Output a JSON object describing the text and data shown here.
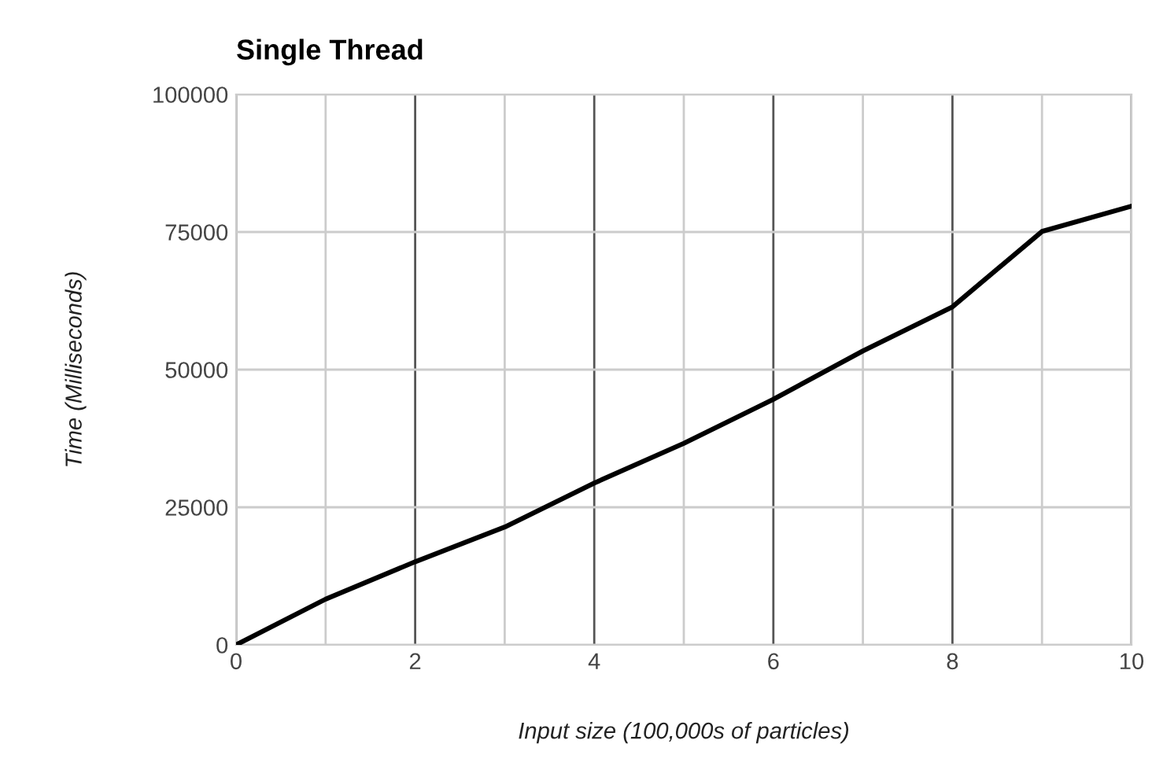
{
  "chart_data": {
    "type": "line",
    "title": "Single Thread",
    "xlabel": "Input size (100,000s of particles)",
    "ylabel": "Time (Milliseconds)",
    "x": [
      0,
      1,
      2,
      3,
      4,
      5,
      6,
      7,
      8,
      9,
      10
    ],
    "series": [
      {
        "color": "#000000",
        "values": [
          0,
          8300,
          15100,
          21400,
          29400,
          36600,
          44600,
          53400,
          61400,
          75100,
          79700
        ]
      }
    ],
    "xlim": [
      0,
      10
    ],
    "ylim": [
      0,
      100000
    ],
    "xticks": [
      0,
      {
        "value": 1,
        "label": null
      },
      2,
      {
        "value": 3,
        "label": null
      },
      4,
      {
        "value": 5,
        "label": null
      },
      6,
      {
        "value": 7,
        "label": null
      },
      8,
      {
        "value": 9,
        "label": null
      },
      10
    ],
    "yticks": [
      0,
      25000,
      50000,
      75000,
      100000
    ],
    "grid": true,
    "marker": "none",
    "line_style": "solid"
  }
}
